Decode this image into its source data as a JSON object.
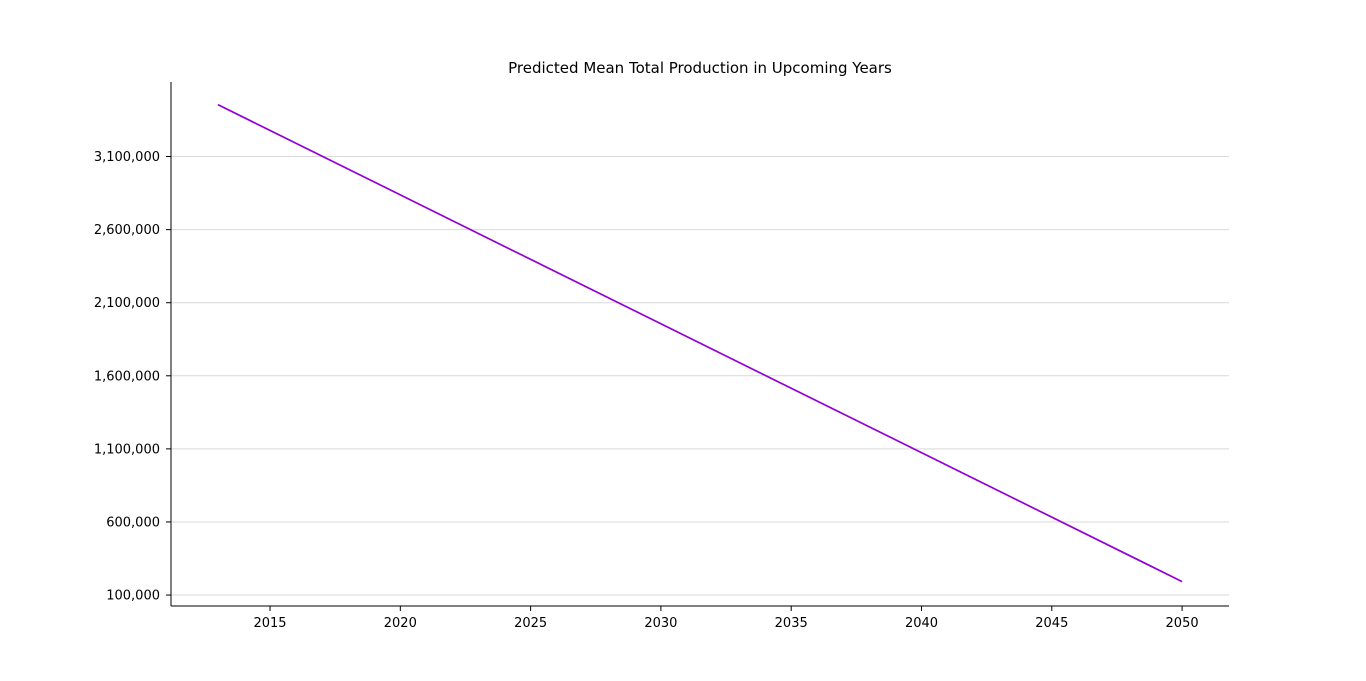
{
  "chart_data": {
    "type": "line",
    "title": "Predicted Mean Total Production in Upcoming Years",
    "xlabel": "",
    "ylabel": "",
    "xlim": [
      2011.2,
      2051.8
    ],
    "ylim": [
      25000,
      3610000
    ],
    "x_ticks": [
      2015,
      2020,
      2025,
      2030,
      2035,
      2040,
      2045,
      2050
    ],
    "x_tick_labels": [
      "2015",
      "2020",
      "2025",
      "2030",
      "2035",
      "2040",
      "2045",
      "2050"
    ],
    "y_ticks": [
      100000,
      600000,
      1100000,
      1600000,
      2100000,
      2600000,
      3100000
    ],
    "y_tick_labels": [
      "100,000",
      "600,000",
      "1,100,000",
      "1,600,000",
      "2,100,000",
      "2,600,000",
      "3,100,000"
    ],
    "grid": "horizontal",
    "legend": "none",
    "series": [
      {
        "color": "#9400d3",
        "x": [
          2013,
          2050
        ],
        "y": [
          3455000,
          192000
        ]
      }
    ]
  }
}
